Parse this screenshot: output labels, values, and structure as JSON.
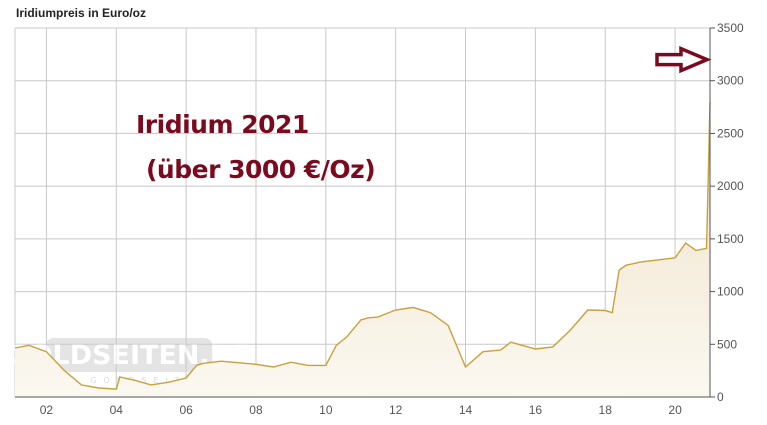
{
  "chart_data": {
    "type": "area",
    "title": "Iridiumpreis in Euro/oz",
    "xlabel": "",
    "ylabel": "",
    "xlim": [
      2001.1,
      2021.0
    ],
    "ylim": [
      0,
      3500
    ],
    "x_tick_labels": [
      "02",
      "04",
      "06",
      "08",
      "10",
      "12",
      "14",
      "16",
      "18",
      "20"
    ],
    "x_ticks": [
      2002,
      2004,
      2006,
      2008,
      2010,
      2012,
      2014,
      2016,
      2018,
      2020
    ],
    "y_ticks": [
      0,
      500,
      1000,
      1500,
      2000,
      2500,
      3000,
      3500
    ],
    "y_axis_side": "right",
    "grid": true,
    "series": [
      {
        "color": "#c9a13c",
        "fill": "#f3ead8",
        "x": [
          2001.1,
          2001.5,
          2002.0,
          2002.5,
          2003.0,
          2003.5,
          2004.0,
          2004.1,
          2004.5,
          2005.0,
          2005.5,
          2006.0,
          2006.3,
          2006.5,
          2007.0,
          2008.0,
          2008.5,
          2009.0,
          2009.5,
          2010.0,
          2010.3,
          2010.6,
          2011.0,
          2011.2,
          2011.5,
          2012.0,
          2012.5,
          2013.0,
          2013.5,
          2013.8,
          2014.0,
          2014.5,
          2015.0,
          2015.3,
          2016.0,
          2016.5,
          2017.0,
          2017.5,
          2018.0,
          2018.2,
          2018.4,
          2018.6,
          2019.0,
          2020.0,
          2020.3,
          2020.6,
          2020.9,
          2020.95,
          2021.0
        ],
        "y": [
          465,
          490,
          430,
          255,
          115,
          85,
          75,
          190,
          160,
          115,
          140,
          180,
          300,
          320,
          340,
          310,
          285,
          330,
          300,
          300,
          490,
          570,
          730,
          750,
          760,
          825,
          850,
          800,
          680,
          445,
          285,
          430,
          445,
          520,
          455,
          475,
          635,
          825,
          820,
          800,
          1205,
          1250,
          1280,
          1320,
          1460,
          1390,
          1410,
          2090,
          2800
        ]
      }
    ],
    "annotations": [
      "Iridium  2021",
      "(über 3000 €/Oz)"
    ],
    "annotation_color": "#7b0a1e",
    "arrow": {
      "points_to_value": 3200,
      "direction": "right",
      "color": "#7b0a1e"
    }
  },
  "watermark": {
    "text": "GOLDSEITEN.DE",
    "subtext": "DIE GOLDSEITEN"
  }
}
